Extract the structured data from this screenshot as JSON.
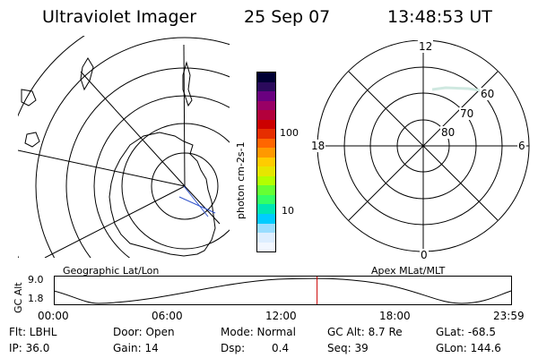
{
  "header": {
    "instrument": "Ultraviolet Imager",
    "date": "25 Sep 07",
    "time": "13:48:53 UT"
  },
  "left_panel": {
    "caption": "Geographic Lat/Lon"
  },
  "right_panel": {
    "caption": "Apex MLat/MLT",
    "mlt_labels": {
      "top": "12",
      "left": "18",
      "right": "6",
      "bottom": "0"
    },
    "mlat_labels": [
      "60",
      "70",
      "80"
    ]
  },
  "colorbar": {
    "unit_label": "photon cm-2s-1",
    "ticks": [
      "100",
      "10"
    ],
    "colors": [
      "#000033",
      "#2b0a5c",
      "#6a0080",
      "#990066",
      "#b3003c",
      "#cc0000",
      "#e62e00",
      "#ff6600",
      "#ff9900",
      "#ffcc00",
      "#e6e600",
      "#b3ff00",
      "#66ff33",
      "#33ff66",
      "#00e6b3",
      "#00ccff",
      "#99ddff",
      "#ddeeff",
      "#f2f7ff"
    ]
  },
  "altitude_plot": {
    "ylabel": "GC Alt",
    "ymax": "9.0",
    "ymin": "1.8",
    "xticks": [
      "00:00",
      "06:00",
      "12:00",
      "18:00",
      "23:59"
    ],
    "marker_time_fraction": 0.5756
  },
  "footer": {
    "flt": "Flt: LBHL",
    "ip": "IP: 36.0",
    "door": "Door: Open",
    "gain": "Gain: 14",
    "mode": "Mode: Normal",
    "dsp": "Dsp:",
    "dsp_val": "0.4",
    "gcalt": "GC Alt: 8.7 Re",
    "seq": "Seq: 39",
    "glat": "GLat: -68.5",
    "glon": "GLon: 144.6"
  }
}
